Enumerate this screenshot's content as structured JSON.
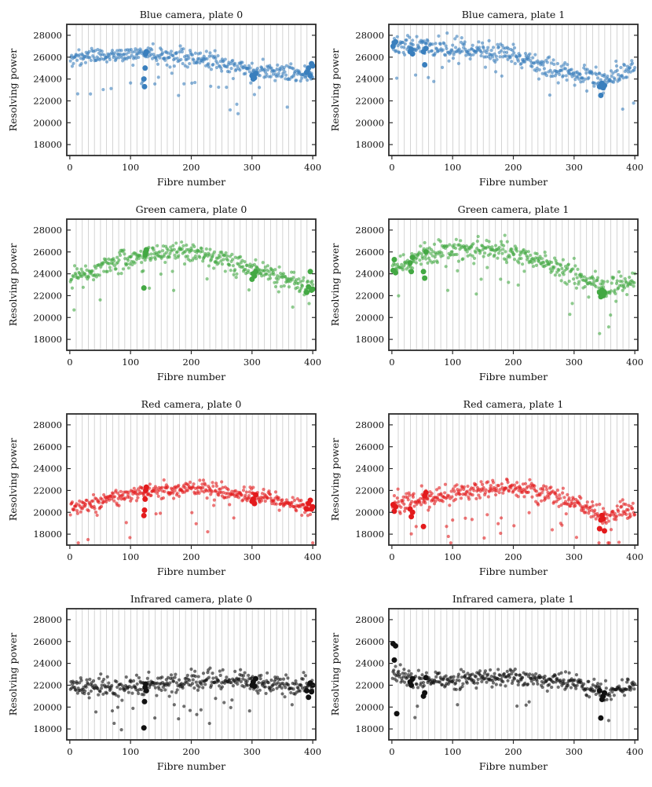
{
  "figure": {
    "fibre_blocks": 40,
    "fibres_per_block": 10,
    "colors": {
      "Blue": "#3a7fbd",
      "Green": "#43a843",
      "Red": "#e31a1c",
      "Infrared": "#111111"
    }
  },
  "chart_data": [
    {
      "type": "scatter",
      "title": "Blue camera, plate 0",
      "camera": "Blue",
      "plate": 0,
      "xlabel": "Fibre number",
      "ylabel": "Resolving power",
      "xlim": [
        -5,
        405
      ],
      "ylim": [
        17000,
        29000
      ],
      "xticks": [
        0,
        100,
        200,
        300,
        400
      ],
      "yticks": [
        18000,
        20000,
        22000,
        24000,
        26000,
        28000
      ],
      "grid": "vertical lines between fibre blocks",
      "trend": [
        [
          0,
          25900
        ],
        [
          100,
          26300
        ],
        [
          200,
          25900
        ],
        [
          300,
          24800
        ],
        [
          400,
          24400
        ]
      ],
      "scatter_sd": 550,
      "highlighted": [
        [
          122,
          24000
        ],
        [
          123,
          23300
        ],
        [
          124,
          25000
        ],
        [
          125,
          26300
        ],
        [
          126,
          26500
        ],
        [
          300,
          24300
        ],
        [
          302,
          24000
        ],
        [
          304,
          24100
        ],
        [
          306,
          24500
        ],
        [
          390,
          24600
        ],
        [
          393,
          25000
        ],
        [
          396,
          24300
        ],
        [
          398,
          25400
        ],
        [
          400,
          25200
        ]
      ]
    },
    {
      "type": "scatter",
      "title": "Blue camera, plate 1",
      "camera": "Blue",
      "plate": 1,
      "xlabel": "Fibre number",
      "ylabel": "Resolving power",
      "xlim": [
        -5,
        405
      ],
      "ylim": [
        17000,
        29000
      ],
      "xticks": [
        0,
        100,
        200,
        300,
        400
      ],
      "yticks": [
        18000,
        20000,
        22000,
        24000,
        26000,
        28000
      ],
      "grid": "vertical lines between fibre blocks",
      "trend": [
        [
          0,
          27300
        ],
        [
          100,
          26800
        ],
        [
          200,
          26100
        ],
        [
          280,
          24700
        ],
        [
          350,
          23800
        ],
        [
          400,
          25000
        ]
      ],
      "scatter_sd": 650,
      "highlighted": [
        [
          2,
          27000
        ],
        [
          4,
          27300
        ],
        [
          6,
          27400
        ],
        [
          30,
          26500
        ],
        [
          32,
          26700
        ],
        [
          34,
          26300
        ],
        [
          52,
          26500
        ],
        [
          54,
          25300
        ],
        [
          56,
          26800
        ],
        [
          342,
          23300
        ],
        [
          344,
          22500
        ],
        [
          346,
          23600
        ],
        [
          348,
          23200
        ],
        [
          350,
          23400
        ]
      ]
    },
    {
      "type": "scatter",
      "title": "Green camera, plate 0",
      "camera": "Green",
      "plate": 0,
      "xlabel": "Fibre number",
      "ylabel": "Resolving power",
      "xlim": [
        -5,
        405
      ],
      "ylim": [
        17000,
        29000
      ],
      "xticks": [
        0,
        100,
        200,
        300,
        400
      ],
      "yticks": [
        18000,
        20000,
        22000,
        24000,
        26000,
        28000
      ],
      "grid": "vertical lines between fibre blocks",
      "trend": [
        [
          0,
          23500
        ],
        [
          50,
          24600
        ],
        [
          100,
          25500
        ],
        [
          150,
          26000
        ],
        [
          200,
          25900
        ],
        [
          250,
          25400
        ],
        [
          300,
          24600
        ],
        [
          350,
          23600
        ],
        [
          400,
          22700
        ]
      ],
      "scatter_sd": 650,
      "highlighted": [
        [
          122,
          22700
        ],
        [
          124,
          25700
        ],
        [
          125,
          26000
        ],
        [
          126,
          26200
        ],
        [
          300,
          23500
        ],
        [
          302,
          24000
        ],
        [
          304,
          23800
        ],
        [
          306,
          24200
        ],
        [
          390,
          22300
        ],
        [
          393,
          22800
        ],
        [
          396,
          24200
        ],
        [
          398,
          22500
        ],
        [
          400,
          22600
        ]
      ]
    },
    {
      "type": "scatter",
      "title": "Green camera, plate 1",
      "camera": "Green",
      "plate": 1,
      "xlabel": "Fibre number",
      "ylabel": "Resolving power",
      "xlim": [
        -5,
        405
      ],
      "ylim": [
        17000,
        29000
      ],
      "xticks": [
        0,
        100,
        200,
        300,
        400
      ],
      "yticks": [
        18000,
        20000,
        22000,
        24000,
        26000,
        28000
      ],
      "grid": "vertical lines between fibre blocks",
      "trend": [
        [
          0,
          24600
        ],
        [
          50,
          25600
        ],
        [
          100,
          26300
        ],
        [
          150,
          26300
        ],
        [
          200,
          26000
        ],
        [
          250,
          25100
        ],
        [
          300,
          23800
        ],
        [
          350,
          22700
        ],
        [
          400,
          23400
        ]
      ],
      "scatter_sd": 700,
      "highlighted": [
        [
          2,
          24300
        ],
        [
          4,
          25300
        ],
        [
          6,
          24100
        ],
        [
          30,
          25000
        ],
        [
          32,
          24200
        ],
        [
          34,
          25500
        ],
        [
          52,
          24200
        ],
        [
          54,
          23600
        ],
        [
          56,
          26000
        ],
        [
          342,
          22300
        ],
        [
          344,
          21900
        ],
        [
          346,
          22500
        ],
        [
          348,
          22000
        ],
        [
          350,
          22300
        ]
      ]
    },
    {
      "type": "scatter",
      "title": "Red camera, plate 0",
      "camera": "Red",
      "plate": 0,
      "xlabel": "Fibre number",
      "ylabel": "Resolving power",
      "xlim": [
        -5,
        405
      ],
      "ylim": [
        17000,
        29000
      ],
      "xticks": [
        0,
        100,
        200,
        300,
        400
      ],
      "yticks": [
        18000,
        20000,
        22000,
        24000,
        26000,
        28000
      ],
      "grid": "vertical lines between fibre blocks",
      "trend": [
        [
          0,
          20300
        ],
        [
          60,
          21100
        ],
        [
          120,
          21900
        ],
        [
          200,
          22200
        ],
        [
          250,
          22000
        ],
        [
          300,
          21600
        ],
        [
          350,
          21000
        ],
        [
          400,
          20400
        ]
      ],
      "scatter_sd": 500,
      "highlighted": [
        [
          122,
          19700
        ],
        [
          123,
          20200
        ],
        [
          124,
          21200
        ],
        [
          125,
          22000
        ],
        [
          126,
          22300
        ],
        [
          300,
          21000
        ],
        [
          302,
          21200
        ],
        [
          304,
          20800
        ],
        [
          306,
          21600
        ],
        [
          390,
          20300
        ],
        [
          393,
          20800
        ],
        [
          396,
          21100
        ],
        [
          398,
          20300
        ],
        [
          400,
          20500
        ]
      ]
    },
    {
      "type": "scatter",
      "title": "Red camera, plate 1",
      "camera": "Red",
      "plate": 1,
      "xlabel": "Fibre number",
      "ylabel": "Resolving power",
      "xlim": [
        -5,
        405
      ],
      "ylim": [
        17000,
        29000
      ],
      "xticks": [
        0,
        100,
        200,
        300,
        400
      ],
      "yticks": [
        18000,
        20000,
        22000,
        24000,
        26000,
        28000
      ],
      "grid": "vertical lines between fibre blocks",
      "trend": [
        [
          0,
          20800
        ],
        [
          60,
          21300
        ],
        [
          120,
          21900
        ],
        [
          200,
          22300
        ],
        [
          250,
          21800
        ],
        [
          300,
          20900
        ],
        [
          350,
          19600
        ],
        [
          400,
          20300
        ]
      ],
      "scatter_sd": 600,
      "highlighted": [
        [
          2,
          20700
        ],
        [
          4,
          20100
        ],
        [
          6,
          20500
        ],
        [
          30,
          20300
        ],
        [
          32,
          19600
        ],
        [
          34,
          20000
        ],
        [
          52,
          18700
        ],
        [
          54,
          21500
        ],
        [
          56,
          21800
        ],
        [
          342,
          18500
        ],
        [
          344,
          19300
        ],
        [
          346,
          19700
        ],
        [
          348,
          19400
        ],
        [
          350,
          18300
        ]
      ]
    },
    {
      "type": "scatter",
      "title": "Infrared camera, plate 0",
      "camera": "Infrared",
      "plate": 0,
      "xlabel": "Fibre number",
      "ylabel": "Resolving power",
      "xlim": [
        -5,
        405
      ],
      "ylim": [
        17000,
        29000
      ],
      "xticks": [
        0,
        100,
        200,
        300,
        400
      ],
      "yticks": [
        18000,
        20000,
        22000,
        24000,
        26000,
        28000
      ],
      "grid": "vertical lines between fibre blocks",
      "trend": [
        [
          0,
          21800
        ],
        [
          100,
          21900
        ],
        [
          200,
          22300
        ],
        [
          250,
          22600
        ],
        [
          300,
          22300
        ],
        [
          350,
          22000
        ],
        [
          400,
          21800
        ]
      ],
      "scatter_sd": 600,
      "highlighted": [
        [
          122,
          18100
        ],
        [
          123,
          20500
        ],
        [
          124,
          21800
        ],
        [
          125,
          22100
        ],
        [
          126,
          21500
        ],
        [
          300,
          22000
        ],
        [
          302,
          22300
        ],
        [
          304,
          21900
        ],
        [
          306,
          22600
        ],
        [
          390,
          21500
        ],
        [
          393,
          20900
        ],
        [
          396,
          22200
        ],
        [
          398,
          21400
        ],
        [
          400,
          22000
        ]
      ]
    },
    {
      "type": "scatter",
      "title": "Infrared camera, plate 1",
      "camera": "Infrared",
      "plate": 1,
      "xlabel": "Fibre number",
      "ylabel": "Resolving power",
      "xlim": [
        -5,
        405
      ],
      "ylim": [
        17000,
        29000
      ],
      "xticks": [
        0,
        100,
        200,
        300,
        400
      ],
      "yticks": [
        18000,
        20000,
        22000,
        24000,
        26000,
        28000
      ],
      "grid": "vertical lines between fibre blocks",
      "trend": [
        [
          0,
          23000
        ],
        [
          50,
          22500
        ],
        [
          100,
          22500
        ],
        [
          200,
          22900
        ],
        [
          300,
          22200
        ],
        [
          350,
          21300
        ],
        [
          400,
          22100
        ]
      ],
      "scatter_sd": 550,
      "highlighted": [
        [
          2,
          25800
        ],
        [
          4,
          24300
        ],
        [
          6,
          25600
        ],
        [
          8,
          19400
        ],
        [
          30,
          22300
        ],
        [
          32,
          22000
        ],
        [
          34,
          22600
        ],
        [
          52,
          21000
        ],
        [
          54,
          21300
        ],
        [
          56,
          22700
        ],
        [
          342,
          21500
        ],
        [
          344,
          19000
        ],
        [
          346,
          20700
        ],
        [
          348,
          21000
        ],
        [
          350,
          21300
        ]
      ]
    }
  ]
}
